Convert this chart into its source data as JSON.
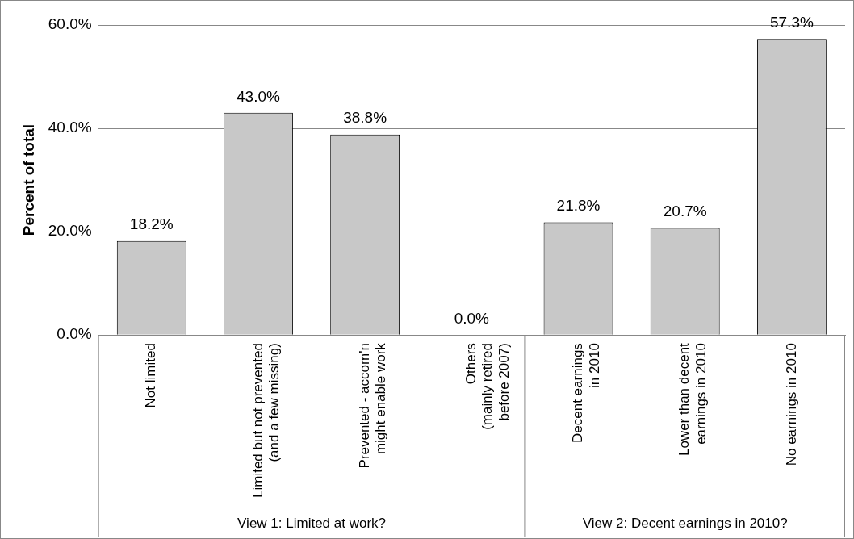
{
  "chart_data": {
    "type": "bar",
    "ylabel": "Percent of total",
    "categories": [
      "Not limited",
      "Limited but not prevented\n(and a few missing)",
      "Prevented - accom'n\nmight enable work",
      "Others\n(mainly retired\nbefore 2007)",
      "Decent earnings\nin 2010",
      "Lower than decent\nearnings in 2010",
      "No earnings in 2010"
    ],
    "values": [
      18.2,
      43.0,
      38.8,
      0.0,
      21.8,
      20.7,
      57.3
    ],
    "value_labels": [
      "18.2%",
      "43.0%",
      "38.8%",
      "0.0%",
      "21.8%",
      "20.7%",
      "57.3%"
    ],
    "color": "#c8c8c8",
    "ylim": [
      0,
      60
    ],
    "yticks": [
      {
        "value": 0,
        "label": "0.0%"
      },
      {
        "value": 20,
        "label": "20.0%"
      },
      {
        "value": 40,
        "label": "40.0%"
      },
      {
        "value": 60,
        "label": "60.0%"
      }
    ],
    "grid": "y",
    "legend": false,
    "annotations": [
      "View 1: Limited at work?",
      "View 2: Decent earnings in 2010?"
    ]
  }
}
